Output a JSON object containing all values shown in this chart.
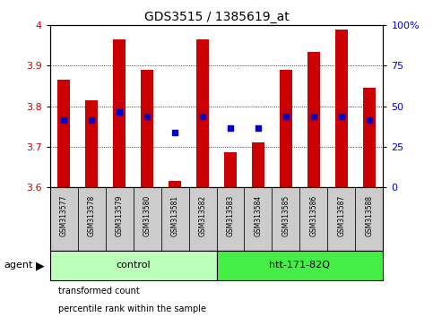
{
  "title": "GDS3515 / 1385619_at",
  "samples": [
    "GSM313577",
    "GSM313578",
    "GSM313579",
    "GSM313580",
    "GSM313581",
    "GSM313582",
    "GSM313583",
    "GSM313584",
    "GSM313585",
    "GSM313586",
    "GSM313587",
    "GSM313588"
  ],
  "red_values": [
    3.865,
    3.815,
    3.965,
    3.89,
    3.615,
    3.965,
    3.685,
    3.71,
    3.89,
    3.935,
    3.99,
    3.845
  ],
  "blue_values": [
    3.765,
    3.765,
    3.785,
    3.775,
    3.735,
    3.775,
    3.745,
    3.745,
    3.775,
    3.775,
    3.775,
    3.765
  ],
  "ymin": 3.6,
  "ymax": 4.0,
  "yticks_left": [
    3.6,
    3.7,
    3.8,
    3.9,
    4.0
  ],
  "ytick_labels_left": [
    "3.6",
    "3.7",
    "3.8",
    "3.9",
    "4"
  ],
  "yticks_right_vals": [
    3.6,
    3.7,
    3.8,
    3.9,
    4.0
  ],
  "ytick_labels_right": [
    "0",
    "25",
    "50",
    "75",
    "100%"
  ],
  "bar_color": "#cc0000",
  "dot_color": "#0000cc",
  "bar_width": 0.45,
  "groups": [
    {
      "label": "control",
      "start": 0,
      "end": 6,
      "color": "#bbffbb"
    },
    {
      "label": "htt-171-82Q",
      "start": 6,
      "end": 12,
      "color": "#44ee44"
    }
  ],
  "agent_label": "agent",
  "legend_items": [
    {
      "color": "#cc0000",
      "label": "transformed count"
    },
    {
      "color": "#0000cc",
      "label": "percentile rank within the sample"
    }
  ],
  "tick_label_color_left": "#cc0000",
  "tick_label_color_right": "#0000cc",
  "sample_bg_color": "#cccccc",
  "plot_bg_color": "#ffffff"
}
